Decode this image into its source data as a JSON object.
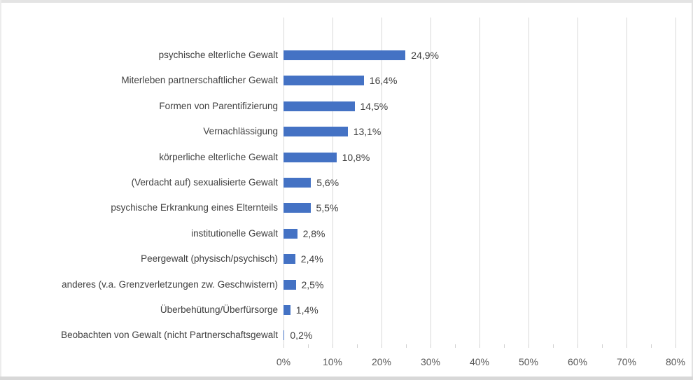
{
  "chart_data": {
    "type": "bar",
    "orientation": "horizontal",
    "title": "",
    "xlabel": "",
    "ylabel": "",
    "categories": [
      "psychische elterliche Gewalt",
      "Miterleben partnerschaftlicher Gewalt",
      "Formen von Parentifizierung",
      "Vernachlässigung",
      "körperliche elterliche Gewalt",
      "(Verdacht auf) sexualisierte Gewalt",
      "psychische Erkrankung eines Elternteils",
      "institutionelle Gewalt",
      "Peergewalt (physisch/psychisch)",
      "anderes (v.a. Grenzverletzungen zw. Geschwistern)",
      "Überbehütung/Überfürsorge",
      "Beobachten von Gewalt (nicht Partnerschaftsgewalt"
    ],
    "values": [
      24.9,
      16.4,
      14.5,
      13.1,
      10.8,
      5.6,
      5.5,
      2.8,
      2.4,
      2.5,
      1.4,
      0.2
    ],
    "value_labels": [
      "24,9%",
      "16,4%",
      "14,5%",
      "13,1%",
      "10,8%",
      "5,6%",
      "5,5%",
      "2,8%",
      "2,4%",
      "2,5%",
      "1,4%",
      "0,2%"
    ],
    "xlim": [
      0,
      80
    ],
    "x_tick_labels": [
      "0%",
      "10%",
      "20%",
      "30%",
      "40%",
      "50%",
      "60%",
      "70%",
      "80%"
    ],
    "x_major_step": 10,
    "x_minor_step": 5,
    "grid": "vertical-major",
    "legend": "none",
    "colors": {
      "bar": "#4472C4",
      "category_label": "#3F3F3F",
      "value_label": "#3F3F3F",
      "axis_label": "#595959",
      "gridline": "#D9D9D9"
    }
  }
}
